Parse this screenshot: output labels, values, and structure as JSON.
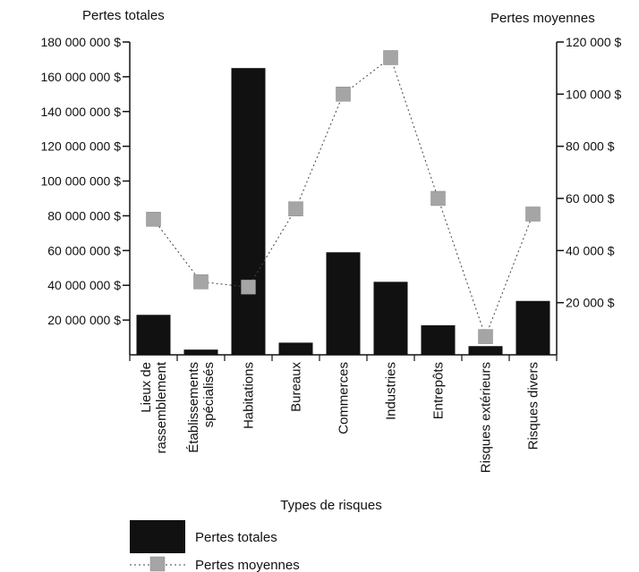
{
  "chart_data": {
    "type": "bar",
    "title": "",
    "xlabel": "Types de risques",
    "ylabel_left": "Pertes totales",
    "ylabel_right": "Pertes moyennes",
    "categories": [
      [
        "Lieux de",
        "rassemblement"
      ],
      [
        "Établissements",
        "spécialisés"
      ],
      [
        "Habitations"
      ],
      [
        "Bureaux"
      ],
      [
        "Commerces"
      ],
      [
        "Industries"
      ],
      [
        "Entrepôts"
      ],
      [
        "Risques extérieurs"
      ],
      [
        "Risques divers"
      ]
    ],
    "series": [
      {
        "name": "Pertes totales",
        "type": "bar",
        "axis": "left",
        "color": "#111111",
        "values": [
          23000000,
          3000000,
          165000000,
          7000000,
          59000000,
          42000000,
          17000000,
          5000000,
          31000000
        ]
      },
      {
        "name": "Pertes moyennes",
        "type": "line",
        "axis": "right",
        "color": "#9a9a9a",
        "values": [
          52000,
          28000,
          26000,
          56000,
          100000,
          114000,
          60000,
          7000,
          54000
        ]
      }
    ],
    "left_axis": {
      "ylim": [
        0,
        180000000
      ],
      "ticks": [
        20000000,
        40000000,
        60000000,
        80000000,
        100000000,
        120000000,
        140000000,
        160000000,
        180000000
      ],
      "tick_labels": [
        "20 000 000 $",
        "40 000 000 $",
        "60 000 000 $",
        "80 000 000 $",
        "100 000 000 $",
        "120 000 000 $",
        "140 000 000 $",
        "160 000 000 $",
        "180 000 000 $"
      ]
    },
    "right_axis": {
      "ylim": [
        0,
        120000
      ],
      "ticks": [
        20000,
        40000,
        60000,
        80000,
        100000,
        120000
      ],
      "tick_labels": [
        "20 000 $",
        "40 000 $",
        "60 000 $",
        "80 000 $",
        "100 000 $",
        "120 000 $"
      ]
    },
    "grid": false,
    "legend": {
      "position": "bottom-left",
      "entries": [
        "Pertes totales",
        "Pertes moyennes"
      ]
    }
  }
}
